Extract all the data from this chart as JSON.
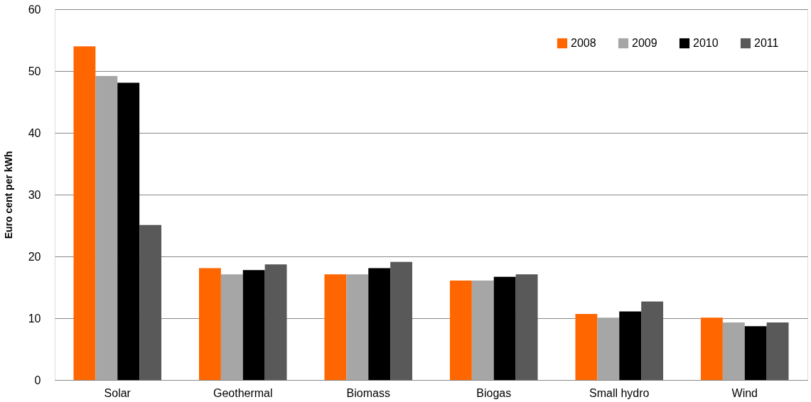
{
  "chart_data": {
    "type": "bar",
    "ylabel": "Euro cent per kWh",
    "categories": [
      "Solar",
      "Geothermal",
      "Biomass",
      "Biogas",
      "Small hydro",
      "Wind"
    ],
    "series": [
      {
        "name": "2008",
        "color": "#ff6600",
        "values": [
          54,
          18.1,
          17.1,
          16.1,
          10.7,
          10.1
        ]
      },
      {
        "name": "2009",
        "color": "#a6a6a6",
        "values": [
          49.2,
          17.1,
          17.1,
          16.1,
          10.1,
          9.3
        ]
      },
      {
        "name": "2010",
        "color": "#000000",
        "values": [
          48.1,
          17.8,
          18.1,
          16.7,
          11.1,
          8.7
        ]
      },
      {
        "name": "2011",
        "color": "#595959",
        "values": [
          25.1,
          18.7,
          19.1,
          17.1,
          12.7,
          9.3
        ]
      }
    ],
    "ylim": [
      0,
      60
    ],
    "yticks": [
      0,
      10,
      20,
      30,
      40,
      50,
      60
    ],
    "grid": "y",
    "legend": "top right"
  }
}
